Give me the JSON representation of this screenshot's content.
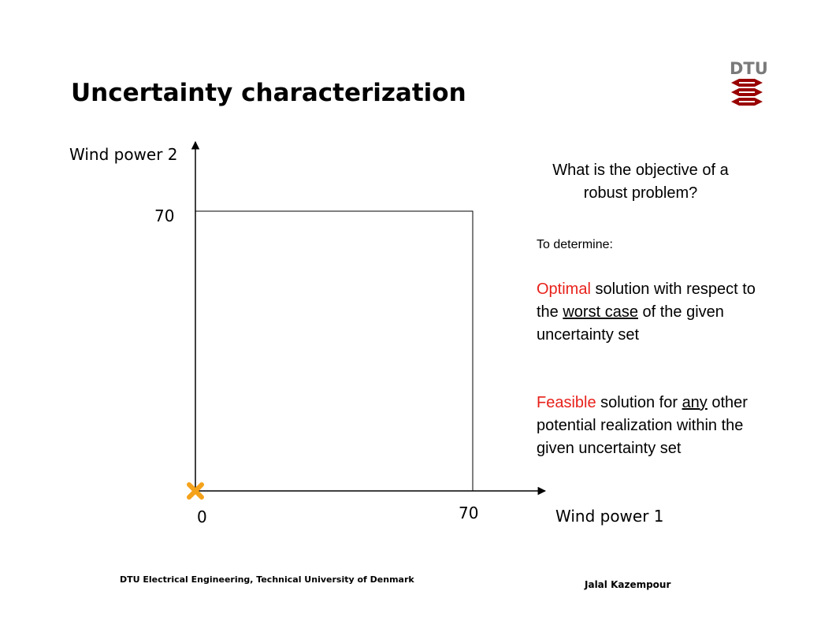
{
  "slide": {
    "title": "Uncertainty characterization"
  },
  "logo": {
    "text": "DTU",
    "color": "#990000"
  },
  "diagram": {
    "y_axis_label": "Wind power 2",
    "x_axis_label": "Wind power 1",
    "origin_label": "0",
    "x_tick_label": "70",
    "y_tick_label": "70",
    "uncertainty_set": {
      "x_range": [
        0,
        70
      ],
      "y_range": [
        0,
        70
      ]
    },
    "origin_marker": {
      "x": 0,
      "y": 0,
      "color": "#f5a21b",
      "icon": "x-mark-icon"
    }
  },
  "text_panel": {
    "question_line1": "What is the objective of a",
    "question_line2": "robust problem?",
    "intro": "To determine:",
    "p1_highlight": "Optimal",
    "p1_a": " solution with respect to the ",
    "p1_underlined": "worst case",
    "p1_b": " of the given uncertainty set",
    "p2_highlight": "Feasible",
    "p2_a": " solution for ",
    "p2_underlined": "any",
    "p2_b": " other potential realization within the given uncertainty set",
    "highlight_color": "#e8211b"
  },
  "footer": {
    "left": "DTU Electrical Engineering, Technical University of Denmark",
    "right": "Jalal Kazempour"
  }
}
